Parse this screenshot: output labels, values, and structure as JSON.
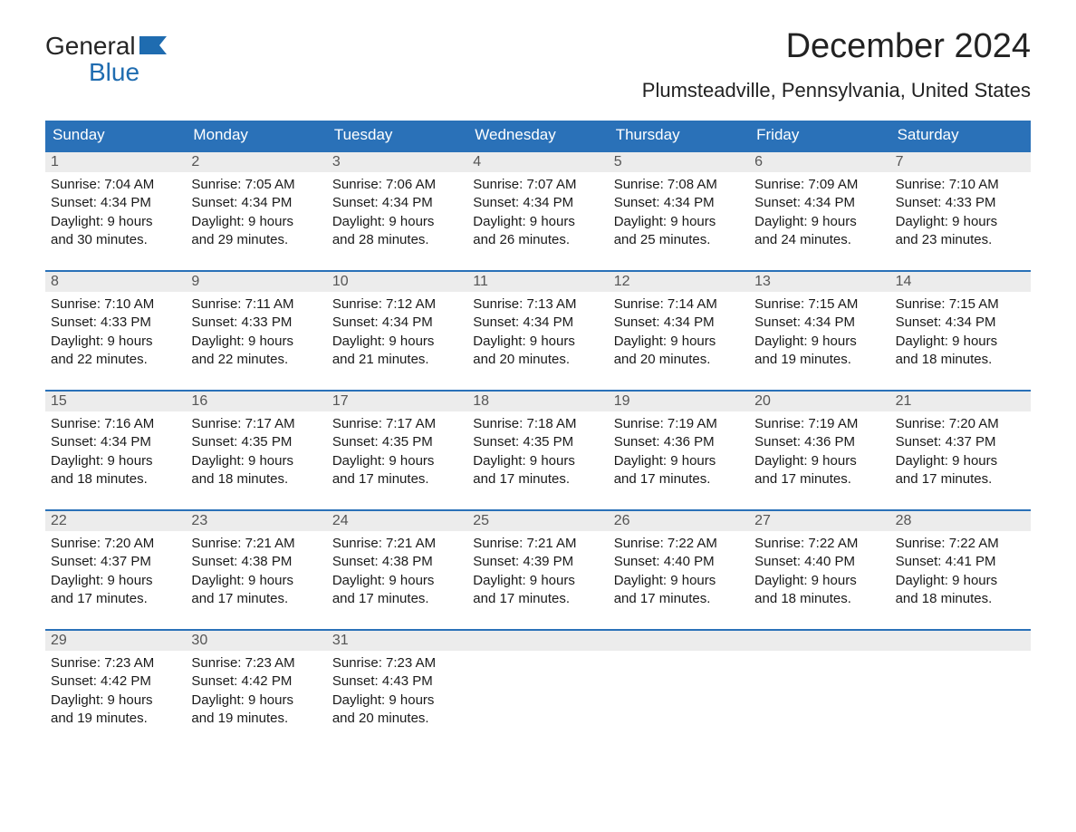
{
  "logo": {
    "top": "General",
    "bottom": "Blue"
  },
  "title": "December 2024",
  "location": "Plumsteadville, Pennsylvania, United States",
  "colors": {
    "header_bg": "#2a71b8",
    "header_text": "#ffffff",
    "daynum_bg": "#ececec",
    "daynum_text": "#555555",
    "week_border": "#2a71b8",
    "body_text": "#1a1a1a",
    "logo_blue": "#1f6cb0"
  },
  "typography": {
    "title_fontsize": 38,
    "location_fontsize": 22,
    "header_fontsize": 17,
    "daynum_fontsize": 16,
    "cell_fontsize": 15,
    "logo_fontsize": 28
  },
  "day_headers": [
    "Sunday",
    "Monday",
    "Tuesday",
    "Wednesday",
    "Thursday",
    "Friday",
    "Saturday"
  ],
  "weeks": [
    [
      {
        "n": "1",
        "sr": "Sunrise: 7:04 AM",
        "ss": "Sunset: 4:34 PM",
        "d1": "Daylight: 9 hours",
        "d2": "and 30 minutes."
      },
      {
        "n": "2",
        "sr": "Sunrise: 7:05 AM",
        "ss": "Sunset: 4:34 PM",
        "d1": "Daylight: 9 hours",
        "d2": "and 29 minutes."
      },
      {
        "n": "3",
        "sr": "Sunrise: 7:06 AM",
        "ss": "Sunset: 4:34 PM",
        "d1": "Daylight: 9 hours",
        "d2": "and 28 minutes."
      },
      {
        "n": "4",
        "sr": "Sunrise: 7:07 AM",
        "ss": "Sunset: 4:34 PM",
        "d1": "Daylight: 9 hours",
        "d2": "and 26 minutes."
      },
      {
        "n": "5",
        "sr": "Sunrise: 7:08 AM",
        "ss": "Sunset: 4:34 PM",
        "d1": "Daylight: 9 hours",
        "d2": "and 25 minutes."
      },
      {
        "n": "6",
        "sr": "Sunrise: 7:09 AM",
        "ss": "Sunset: 4:34 PM",
        "d1": "Daylight: 9 hours",
        "d2": "and 24 minutes."
      },
      {
        "n": "7",
        "sr": "Sunrise: 7:10 AM",
        "ss": "Sunset: 4:33 PM",
        "d1": "Daylight: 9 hours",
        "d2": "and 23 minutes."
      }
    ],
    [
      {
        "n": "8",
        "sr": "Sunrise: 7:10 AM",
        "ss": "Sunset: 4:33 PM",
        "d1": "Daylight: 9 hours",
        "d2": "and 22 minutes."
      },
      {
        "n": "9",
        "sr": "Sunrise: 7:11 AM",
        "ss": "Sunset: 4:33 PM",
        "d1": "Daylight: 9 hours",
        "d2": "and 22 minutes."
      },
      {
        "n": "10",
        "sr": "Sunrise: 7:12 AM",
        "ss": "Sunset: 4:34 PM",
        "d1": "Daylight: 9 hours",
        "d2": "and 21 minutes."
      },
      {
        "n": "11",
        "sr": "Sunrise: 7:13 AM",
        "ss": "Sunset: 4:34 PM",
        "d1": "Daylight: 9 hours",
        "d2": "and 20 minutes."
      },
      {
        "n": "12",
        "sr": "Sunrise: 7:14 AM",
        "ss": "Sunset: 4:34 PM",
        "d1": "Daylight: 9 hours",
        "d2": "and 20 minutes."
      },
      {
        "n": "13",
        "sr": "Sunrise: 7:15 AM",
        "ss": "Sunset: 4:34 PM",
        "d1": "Daylight: 9 hours",
        "d2": "and 19 minutes."
      },
      {
        "n": "14",
        "sr": "Sunrise: 7:15 AM",
        "ss": "Sunset: 4:34 PM",
        "d1": "Daylight: 9 hours",
        "d2": "and 18 minutes."
      }
    ],
    [
      {
        "n": "15",
        "sr": "Sunrise: 7:16 AM",
        "ss": "Sunset: 4:34 PM",
        "d1": "Daylight: 9 hours",
        "d2": "and 18 minutes."
      },
      {
        "n": "16",
        "sr": "Sunrise: 7:17 AM",
        "ss": "Sunset: 4:35 PM",
        "d1": "Daylight: 9 hours",
        "d2": "and 18 minutes."
      },
      {
        "n": "17",
        "sr": "Sunrise: 7:17 AM",
        "ss": "Sunset: 4:35 PM",
        "d1": "Daylight: 9 hours",
        "d2": "and 17 minutes."
      },
      {
        "n": "18",
        "sr": "Sunrise: 7:18 AM",
        "ss": "Sunset: 4:35 PM",
        "d1": "Daylight: 9 hours",
        "d2": "and 17 minutes."
      },
      {
        "n": "19",
        "sr": "Sunrise: 7:19 AM",
        "ss": "Sunset: 4:36 PM",
        "d1": "Daylight: 9 hours",
        "d2": "and 17 minutes."
      },
      {
        "n": "20",
        "sr": "Sunrise: 7:19 AM",
        "ss": "Sunset: 4:36 PM",
        "d1": "Daylight: 9 hours",
        "d2": "and 17 minutes."
      },
      {
        "n": "21",
        "sr": "Sunrise: 7:20 AM",
        "ss": "Sunset: 4:37 PM",
        "d1": "Daylight: 9 hours",
        "d2": "and 17 minutes."
      }
    ],
    [
      {
        "n": "22",
        "sr": "Sunrise: 7:20 AM",
        "ss": "Sunset: 4:37 PM",
        "d1": "Daylight: 9 hours",
        "d2": "and 17 minutes."
      },
      {
        "n": "23",
        "sr": "Sunrise: 7:21 AM",
        "ss": "Sunset: 4:38 PM",
        "d1": "Daylight: 9 hours",
        "d2": "and 17 minutes."
      },
      {
        "n": "24",
        "sr": "Sunrise: 7:21 AM",
        "ss": "Sunset: 4:38 PM",
        "d1": "Daylight: 9 hours",
        "d2": "and 17 minutes."
      },
      {
        "n": "25",
        "sr": "Sunrise: 7:21 AM",
        "ss": "Sunset: 4:39 PM",
        "d1": "Daylight: 9 hours",
        "d2": "and 17 minutes."
      },
      {
        "n": "26",
        "sr": "Sunrise: 7:22 AM",
        "ss": "Sunset: 4:40 PM",
        "d1": "Daylight: 9 hours",
        "d2": "and 17 minutes."
      },
      {
        "n": "27",
        "sr": "Sunrise: 7:22 AM",
        "ss": "Sunset: 4:40 PM",
        "d1": "Daylight: 9 hours",
        "d2": "and 18 minutes."
      },
      {
        "n": "28",
        "sr": "Sunrise: 7:22 AM",
        "ss": "Sunset: 4:41 PM",
        "d1": "Daylight: 9 hours",
        "d2": "and 18 minutes."
      }
    ],
    [
      {
        "n": "29",
        "sr": "Sunrise: 7:23 AM",
        "ss": "Sunset: 4:42 PM",
        "d1": "Daylight: 9 hours",
        "d2": "and 19 minutes."
      },
      {
        "n": "30",
        "sr": "Sunrise: 7:23 AM",
        "ss": "Sunset: 4:42 PM",
        "d1": "Daylight: 9 hours",
        "d2": "and 19 minutes."
      },
      {
        "n": "31",
        "sr": "Sunrise: 7:23 AM",
        "ss": "Sunset: 4:43 PM",
        "d1": "Daylight: 9 hours",
        "d2": "and 20 minutes."
      },
      null,
      null,
      null,
      null
    ]
  ]
}
